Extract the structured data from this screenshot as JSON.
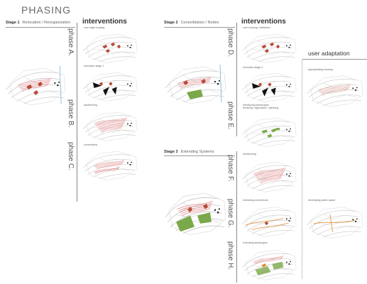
{
  "title": "PHASING",
  "stages": {
    "s1_label": "Stage 1",
    "s1_text": "Relocation / Reorganization",
    "s2_label": "Stage 2",
    "s2_text": "Consolidation / Nodes",
    "s3_label": "Stage 3",
    "s3_text": "Extending Systems"
  },
  "headers": {
    "interventions_1": "interventions",
    "interventions_2": "interventions",
    "user_adaptation": "user adaptation"
  },
  "phases": {
    "a": "phase A.",
    "b": "phase B.",
    "c": "phase C.",
    "d": "phase D.",
    "e": "phase E.",
    "f": "phase F.",
    "g": "phase G.",
    "h": "phase H."
  },
  "captions": {
    "a": "new edge housing",
    "a2": "relocation stage 1",
    "b": "landforming",
    "c": "connections",
    "d": "core housing / institution",
    "d2": "relocation stage 2",
    "e": "introducing landscapes\nterracing / agriculture / planning",
    "f": "landforming",
    "g": "extending connections",
    "h": "extending landscapes",
    "u1": "appropriating housing",
    "u2": "developing public space"
  },
  "colors": {
    "red": "#b84a3a",
    "pink": "#e8a0a0",
    "green": "#7aa84a",
    "orange": "#e0903a",
    "line": "#bbbbbb"
  }
}
